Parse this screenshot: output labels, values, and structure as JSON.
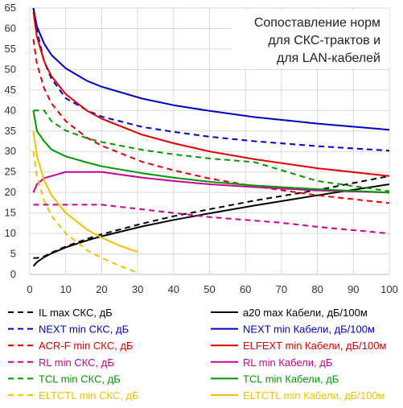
{
  "chart_data": {
    "type": "line",
    "title_lines": [
      "Сопоставление норм",
      "для СКС-трактов и",
      "для LAN-кабелей"
    ],
    "xlabel": "",
    "ylabel": "",
    "xlim": [
      0,
      100
    ],
    "ylim": [
      0,
      65
    ],
    "x_ticks": [
      0,
      10,
      20,
      30,
      40,
      50,
      60,
      70,
      80,
      90,
      100
    ],
    "y_ticks": [
      0,
      5,
      10,
      15,
      20,
      25,
      30,
      35,
      40,
      45,
      50,
      55,
      60,
      65
    ],
    "grid": true,
    "legend_position": "bottom",
    "series": [
      {
        "name": "IL max СКС, дБ",
        "color": "#000000",
        "dash": true,
        "x": [
          1,
          2,
          4,
          6,
          10,
          16,
          20,
          31.25,
          40,
          50,
          62.5,
          80,
          100
        ],
        "y": [
          4,
          4,
          4.4,
          5.3,
          6.8,
          8.7,
          9.8,
          12.4,
          14.2,
          15.9,
          18,
          20.6,
          24
        ]
      },
      {
        "name": "a20 max Кабели, дБ/100м",
        "color": "#000000",
        "dash": false,
        "x": [
          1,
          2,
          4,
          6,
          10,
          16,
          20,
          31.25,
          40,
          50,
          62.5,
          80,
          100
        ],
        "y": [
          2,
          3,
          4.2,
          5.1,
          6.6,
          8.3,
          9.3,
          11.7,
          13.3,
          14.9,
          16.8,
          19.3,
          22
        ]
      },
      {
        "name": "NEXT min СКС, дБ",
        "color": "#0000c0",
        "dash": true,
        "x": [
          1,
          2,
          4,
          6,
          10,
          16,
          20,
          31.25,
          40,
          50,
          62.5,
          80,
          100
        ],
        "y": [
          65,
          59.5,
          52,
          47.8,
          43,
          40,
          38.5,
          36,
          34.8,
          33.6,
          32.5,
          31.3,
          30.2
        ]
      },
      {
        "name": "NEXT min Кабели, дБ/100м",
        "color": "#0000c0",
        "dash": false,
        "x": [
          1,
          2,
          4,
          6,
          10,
          16,
          20,
          31.25,
          40,
          50,
          62.5,
          80,
          100
        ],
        "y": [
          65,
          60.5,
          56.3,
          53.6,
          50.3,
          47.2,
          45.8,
          42.9,
          41.3,
          39.9,
          38.4,
          36.8,
          35.3
        ]
      },
      {
        "name": "ACR-F min СКС, дБ",
        "color": "#e00000",
        "dash": true,
        "x": [
          1,
          2,
          4,
          6,
          10,
          16,
          20,
          31.25,
          40,
          50,
          62.5,
          80,
          100
        ],
        "y": [
          57.4,
          51.4,
          45.4,
          41.8,
          37.4,
          33.3,
          31.4,
          27.5,
          25.4,
          23.4,
          21.5,
          19.3,
          17.4
        ]
      },
      {
        "name": "ELFEXT min Кабели, дБ/100м",
        "color": "#e00000",
        "dash": false,
        "x": [
          1,
          2,
          4,
          6,
          10,
          16,
          20,
          31.25,
          40,
          50,
          62.5,
          80,
          100
        ],
        "y": [
          64,
          58,
          52,
          48.4,
          44,
          39.9,
          38,
          34.1,
          32,
          30,
          28.1,
          25.9,
          24
        ]
      },
      {
        "name": "RL min СКС, дБ",
        "color": "#cc0099",
        "dash": true,
        "x": [
          1,
          3,
          10,
          20,
          30,
          40,
          50,
          60,
          70,
          80,
          90,
          100
        ],
        "y": [
          17,
          17,
          17,
          17,
          16,
          15,
          14,
          13.3,
          12.6,
          11.6,
          10.8,
          10
        ]
      },
      {
        "name": "RL min Кабели, дБ",
        "color": "#cc0099",
        "dash": false,
        "x": [
          1,
          2,
          4,
          6,
          10,
          16,
          20,
          31.25,
          40,
          50,
          62.5,
          80,
          100
        ],
        "y": [
          20,
          22,
          23.5,
          24,
          25,
          25,
          25,
          23.6,
          22.8,
          22,
          21.3,
          20.5,
          20
        ]
      },
      {
        "name": "TCL min СКС, дБ",
        "color": "#009900",
        "dash": true,
        "x": [
          1,
          2,
          4,
          6,
          10,
          16,
          20,
          31.25,
          40,
          50,
          62.5,
          80,
          100
        ],
        "y": [
          40,
          40,
          40,
          37.4,
          35.1,
          33.2,
          32.3,
          30.4,
          29.3,
          28.3,
          27.4,
          22.8,
          20.3
        ]
      },
      {
        "name": "TCL min Кабели, дБ",
        "color": "#009900",
        "dash": false,
        "x": [
          1,
          2,
          4,
          6,
          10,
          16,
          20,
          31.25,
          40,
          50,
          62.5,
          80,
          100
        ],
        "y": [
          40,
          35,
          32.5,
          30.5,
          28.8,
          27.3,
          26.4,
          24.7,
          23.6,
          22.6,
          21.7,
          20.8,
          20
        ]
      },
      {
        "name": "ELTCTL min СКС, дБ",
        "color": "#f2c200",
        "dash": true,
        "x": [
          1,
          2,
          4,
          6,
          10,
          16,
          20,
          25,
          30
        ],
        "y": [
          30,
          24,
          18,
          14.4,
          10,
          5.9,
          4,
          2.1,
          0.4
        ]
      },
      {
        "name": "ELTCTL min Кабели, дБ/100м",
        "color": "#f2c200",
        "dash": false,
        "x": [
          1,
          2,
          4,
          6,
          10,
          16,
          20,
          25,
          30
        ],
        "y": [
          35,
          29,
          23,
          19.4,
          15,
          10.9,
          9,
          7,
          5.5
        ]
      }
    ]
  }
}
